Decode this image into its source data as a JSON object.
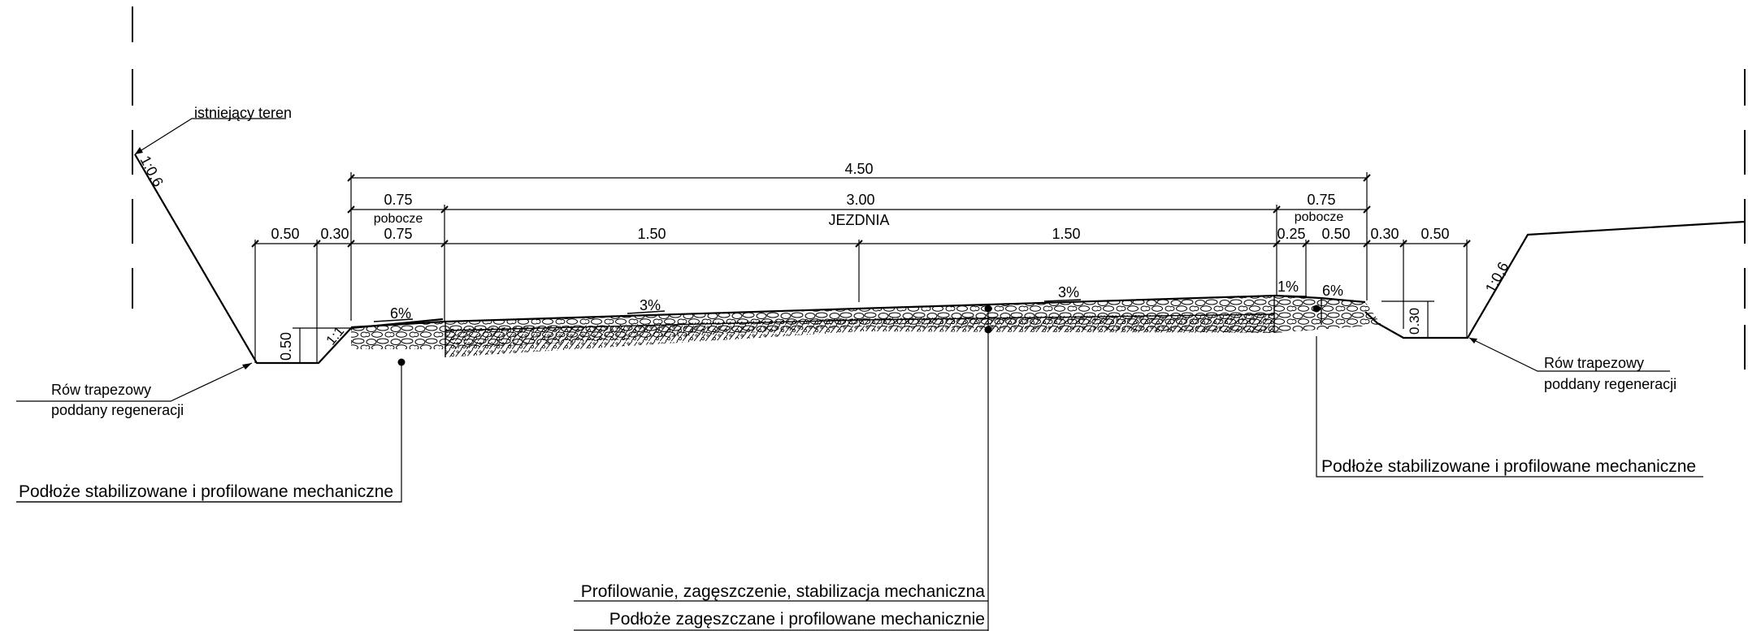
{
  "labels": {
    "existing_terrain": "istniejący teren",
    "slope_left": "1:0,6",
    "slope_right": "1:0,6",
    "inner_slope": "1:1",
    "ditch_left_line1": "Rów trapezowy",
    "ditch_left_line2": "poddany regeneracji",
    "ditch_right_line1": "Rów trapezowy",
    "ditch_right_line2": "poddany regeneracji",
    "subgrade_left": "Podłoże stabilizowane i profilowane mechaniczne",
    "subgrade_right": "Podłoże stabilizowane i profilowane mechaniczne",
    "center_note_line1": "Profilowanie, zagęszczenie, stabilizacja mechaniczna",
    "center_note_line2": "Podłoże zagęszczane i profilowane mechanicznie"
  },
  "dimensions": {
    "total_width": "4.50",
    "shoulder_left_top": "0.75",
    "shoulder_left_name": "pobocze",
    "shoulder_left_bottom": "0.75",
    "roadway_width": "3.00",
    "roadway_name": "JEZDNIA",
    "lane_left": "1.50",
    "lane_right": "1.50",
    "shoulder_right_top": "0.75",
    "shoulder_right_name": "pobocze",
    "ditch_left_bottom": "0.50",
    "ditch_left_slope": "0.30",
    "ditch_left_depth": "0.50",
    "right_strip": "0.25",
    "shoulder_right_bottom": "0.50",
    "ditch_right_slope": "0.30",
    "ditch_right_bottom": "0.50",
    "ditch_right_depth": "0.30"
  },
  "slopes": {
    "shoulder_left": "6%",
    "lane_left": "3%",
    "lane_right": "3%",
    "strip_right": "1%",
    "shoulder_right": "6%"
  }
}
